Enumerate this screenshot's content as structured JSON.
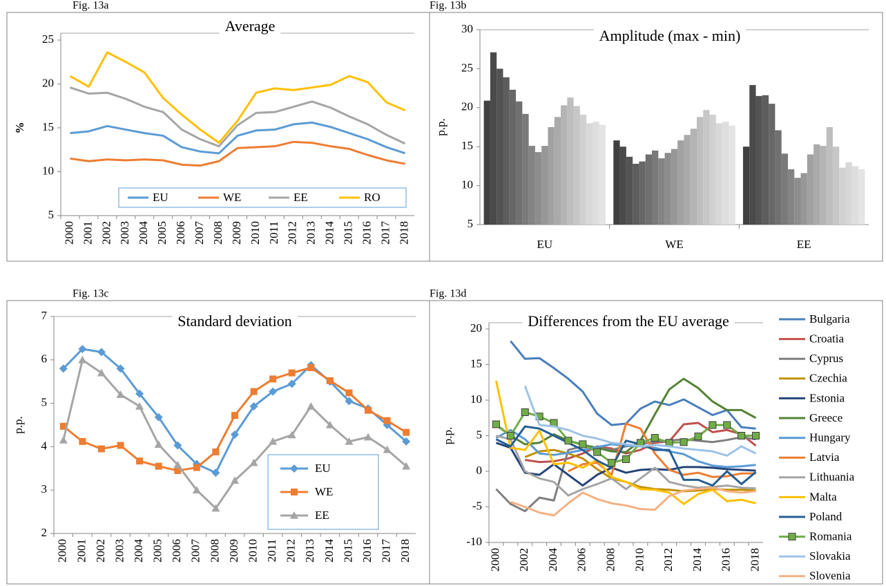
{
  "chart_data": [
    {
      "type": "line",
      "figure_label": "Fig. 13a",
      "title": "Average",
      "ylabel": "%",
      "categories": [
        "2000",
        "2001",
        "2002",
        "2003",
        "2004",
        "2005",
        "2006",
        "2007",
        "2008",
        "2009",
        "2010",
        "2011",
        "2012",
        "2013",
        "2014",
        "2015",
        "2016",
        "2017",
        "2018"
      ],
      "ylim": [
        5,
        25
      ],
      "yticks": [
        5,
        10,
        15,
        20,
        25
      ],
      "legend": "bottom",
      "series": [
        {
          "name": "EU",
          "color": "#5b9bd5",
          "values": [
            14.4,
            14.6,
            15.2,
            14.8,
            14.4,
            14.1,
            12.8,
            12.3,
            12.1,
            14.1,
            14.7,
            14.8,
            15.4,
            15.6,
            15.1,
            14.4,
            13.7,
            12.8,
            12.1
          ]
        },
        {
          "name": "WE",
          "color": "#ed7d31",
          "values": [
            11.5,
            11.2,
            11.4,
            11.3,
            11.4,
            11.3,
            10.8,
            10.7,
            11.2,
            12.7,
            12.8,
            12.9,
            13.4,
            13.3,
            12.9,
            12.6,
            11.9,
            11.3,
            10.9
          ]
        },
        {
          "name": "EE",
          "color": "#a5a5a5",
          "values": [
            19.6,
            18.9,
            19.0,
            18.3,
            17.4,
            16.8,
            14.8,
            13.7,
            12.9,
            15.3,
            16.7,
            16.8,
            17.4,
            18.0,
            17.3,
            16.3,
            15.4,
            14.2,
            13.2
          ]
        },
        {
          "name": "RO",
          "color": "#ffc000",
          "values": [
            20.9,
            19.7,
            23.6,
            22.5,
            21.3,
            18.4,
            16.5,
            14.8,
            13.3,
            15.8,
            19.0,
            19.5,
            19.3,
            19.6,
            19.9,
            20.9,
            20.2,
            17.9,
            17.0
          ]
        }
      ]
    },
    {
      "type": "bar",
      "figure_label": "Fig. 13b",
      "title": "Amplitude (max - min)",
      "ylabel": "p.p.",
      "categories": [
        "EU",
        "WE",
        "EE"
      ],
      "ylim": [
        5,
        30
      ],
      "yticks": [
        5,
        10,
        15,
        20,
        25,
        30
      ],
      "series": [
        {
          "color": "#404040",
          "values": [
            20.9,
            15.8,
            15.0
          ]
        },
        {
          "color": "#4a4a4a",
          "values": [
            27.1,
            15.0,
            22.9
          ]
        },
        {
          "color": "#535353",
          "values": [
            25.0,
            13.7,
            21.5
          ]
        },
        {
          "color": "#5d5d5d",
          "values": [
            23.9,
            12.8,
            21.6
          ]
        },
        {
          "color": "#676767",
          "values": [
            22.3,
            13.1,
            20.5
          ]
        },
        {
          "color": "#707070",
          "values": [
            20.8,
            14.0,
            17.1
          ]
        },
        {
          "color": "#7a7a7a",
          "values": [
            19.2,
            14.5,
            14.1
          ]
        },
        {
          "color": "#848484",
          "values": [
            15.1,
            13.5,
            12.1
          ]
        },
        {
          "color": "#8d8d8d",
          "values": [
            14.3,
            14.2,
            11.0
          ]
        },
        {
          "color": "#979797",
          "values": [
            15.1,
            14.7,
            11.6
          ]
        },
        {
          "color": "#a1a1a1",
          "values": [
            17.5,
            15.8,
            14.0
          ]
        },
        {
          "color": "#aaaaaa",
          "values": [
            18.8,
            16.5,
            15.3
          ]
        },
        {
          "color": "#b4b4b4",
          "values": [
            20.3,
            17.3,
            15.1
          ]
        },
        {
          "color": "#bebebe",
          "values": [
            21.3,
            18.8,
            17.5
          ]
        },
        {
          "color": "#c7c7c7",
          "values": [
            20.2,
            19.7,
            15.0
          ]
        },
        {
          "color": "#d1d1d1",
          "values": [
            19.1,
            19.1,
            12.3
          ]
        },
        {
          "color": "#d8d8d8",
          "values": [
            18.0,
            18.0,
            13.0
          ]
        },
        {
          "color": "#dedede",
          "values": [
            18.2,
            18.2,
            12.5
          ]
        },
        {
          "color": "#e4e4e4",
          "values": [
            17.8,
            17.7,
            12.1
          ]
        }
      ]
    },
    {
      "type": "line",
      "figure_label": "Fig. 13c",
      "title": "Standard deviation",
      "ylabel": "p.p.",
      "categories": [
        "2000",
        "2001",
        "2002",
        "2003",
        "2004",
        "2005",
        "2006",
        "2007",
        "2008",
        "2009",
        "2010",
        "2011",
        "2012",
        "2013",
        "2014",
        "2015",
        "2016",
        "2017",
        "2018"
      ],
      "ylim": [
        2,
        7
      ],
      "yticks": [
        2,
        3,
        4,
        5,
        6,
        7
      ],
      "legend": "right",
      "series": [
        {
          "name": "EU",
          "color": "#5b9bd5",
          "marker": "diamond",
          "values": [
            5.8,
            6.25,
            6.18,
            5.8,
            5.22,
            4.68,
            4.03,
            3.6,
            3.4,
            4.28,
            4.93,
            5.27,
            5.45,
            5.88,
            5.5,
            5.05,
            4.88,
            4.5,
            4.12
          ]
        },
        {
          "name": "WE",
          "color": "#ed7d31",
          "marker": "square",
          "values": [
            4.47,
            4.12,
            3.95,
            4.03,
            3.67,
            3.55,
            3.45,
            3.52,
            3.88,
            4.72,
            5.27,
            5.56,
            5.7,
            5.82,
            5.52,
            5.24,
            4.84,
            4.6,
            4.33
          ]
        },
        {
          "name": "EE",
          "color": "#a5a5a5",
          "marker": "triangle",
          "values": [
            4.15,
            6.0,
            5.7,
            5.2,
            4.93,
            4.05,
            3.58,
            3.0,
            2.58,
            3.22,
            3.63,
            4.12,
            4.27,
            4.93,
            4.5,
            4.12,
            4.22,
            3.93,
            3.55
          ]
        }
      ]
    },
    {
      "type": "line",
      "figure_label": "Fig. 13d",
      "title": "Differences from the EU average",
      "ylabel": "p.p.",
      "categories": [
        "2000",
        null,
        "2002",
        null,
        "2004",
        null,
        "2006",
        null,
        "2008",
        null,
        "2010",
        null,
        "2012",
        null,
        "2014",
        null,
        "2016",
        null,
        "2018"
      ],
      "ylim": [
        -10,
        20
      ],
      "yticks": [
        -10,
        -5,
        0,
        5,
        10,
        15,
        20
      ],
      "legend": "outside right",
      "series": [
        {
          "name": "Bulgaria",
          "color": "#4a7ebb",
          "values": [
            null,
            18.3,
            15.8,
            15.9,
            14.5,
            13.0,
            11.2,
            8.1,
            6.5,
            6.7,
            8.8,
            9.8,
            9.3,
            10.1,
            9.0,
            7.9,
            8.6,
            6.2,
            6.0
          ]
        },
        {
          "name": "Croatia",
          "color": "#c0504d",
          "values": [
            null,
            null,
            1.6,
            1.3,
            1.4,
            1.8,
            2.5,
            3.5,
            3.2,
            2.5,
            3.0,
            4.0,
            4.2,
            6.6,
            6.8,
            5.5,
            5.8,
            5.2,
            3.6
          ]
        },
        {
          "name": "Cyprus",
          "color": "#7f7f7f",
          "values": [
            -2.5,
            -4.6,
            -5.6,
            -3.7,
            -4.1,
            3.0,
            3.5,
            3.3,
            3.0,
            3.5,
            3.8,
            4.2,
            4.3,
            4.5,
            4.3,
            4.1,
            4.4,
            4.8,
            4.5
          ]
        },
        {
          "name": "Czechia",
          "color": "#bf9000",
          "values": [
            null,
            null,
            2.0,
            2.8,
            3.0,
            2.5,
            1.8,
            0.3,
            -1.0,
            -1.5,
            -2.2,
            -2.5,
            -2.6,
            -2.8,
            -2.7,
            -2.5,
            -2.6,
            -2.6,
            -2.7
          ]
        },
        {
          "name": "Estonia",
          "color": "#264478",
          "values": [
            4.0,
            3.3,
            -0.2,
            -0.5,
            1.0,
            -0.5,
            -2.0,
            -0.5,
            0.5,
            -0.2,
            0.2,
            0.3,
            0.2,
            0.6,
            0.6,
            0.5,
            0.3,
            0.2,
            0.1
          ]
        },
        {
          "name": "Greece",
          "color": "#548235",
          "values": [
            6.5,
            5.0,
            3.8,
            4.0,
            5.2,
            4.3,
            3.7,
            3.3,
            2.8,
            2.7,
            4.3,
            8.0,
            11.5,
            13.0,
            11.7,
            9.8,
            8.6,
            8.6,
            7.5
          ]
        },
        {
          "name": "Hungary",
          "color": "#5b9bd5",
          "values": [
            4.7,
            5.8,
            4.5,
            2.5,
            2.3,
            2.6,
            3.0,
            3.4,
            3.8,
            3.6,
            3.5,
            3.3,
            2.8,
            2.4,
            1.4,
            0.8,
            0.6,
            0.7,
            0.9
          ]
        },
        {
          "name": "Latvia",
          "color": "#ed7d31",
          "values": [
            null,
            null,
            null,
            null,
            null,
            0.0,
            1.0,
            1.2,
            -0.5,
            6.7,
            6.0,
            2.5,
            0.2,
            -0.5,
            -0.2,
            -0.8,
            -0.7,
            -0.3,
            -0.3
          ]
        },
        {
          "name": "Lithuania",
          "color": "#a5a5a5",
          "values": [
            5.0,
            4.5,
            0.0,
            -1.0,
            -1.5,
            -3.4,
            -2.5,
            -1.8,
            -1.0,
            -2.5,
            -1.0,
            0.5,
            -1.5,
            -2.0,
            -2.3,
            -2.2,
            -2.0,
            -2.3,
            -2.4
          ]
        },
        {
          "name": "Malta",
          "color": "#ffc000",
          "values": [
            12.7,
            3.3,
            3.0,
            5.7,
            1.0,
            1.2,
            0.5,
            1.6,
            -0.8,
            -1.5,
            -2.5,
            -2.6,
            -3.0,
            -4.6,
            -3.2,
            -2.6,
            -4.2,
            -4.0,
            -4.5
          ]
        },
        {
          "name": "Poland",
          "color": "#255e91",
          "values": [
            4.5,
            3.5,
            6.3,
            6.0,
            5.0,
            4.0,
            3.0,
            1.5,
            0.5,
            4.3,
            3.8,
            3.0,
            3.0,
            -1.2,
            -1.2,
            -2.0,
            0.0,
            -1.8,
            -0.1
          ]
        },
        {
          "name": "Romania",
          "color": "#70ad47",
          "marker": "square",
          "values": [
            6.6,
            5.0,
            8.3,
            7.7,
            6.8,
            4.3,
            3.8,
            2.7,
            1.2,
            1.7,
            4.0,
            4.7,
            4.0,
            4.1,
            4.9,
            6.5,
            6.5,
            5.0,
            5.0
          ]
        },
        {
          "name": "Slovakia",
          "color": "#9dc3e6",
          "values": [
            null,
            null,
            12.0,
            6.5,
            6.3,
            5.8,
            5.0,
            4.6,
            4.0,
            3.8,
            3.5,
            3.7,
            3.5,
            3.2,
            3.0,
            2.8,
            2.2,
            3.5,
            2.5
          ]
        },
        {
          "name": "Slovenia",
          "color": "#f4b183",
          "values": [
            null,
            -4.3,
            -5.0,
            -5.8,
            -6.2,
            -4.5,
            -3.0,
            -3.9,
            -4.5,
            -4.8,
            -5.3,
            -5.4,
            -3.5,
            -2.7,
            -2.5,
            -2.3,
            -2.8,
            -3.0,
            -2.8
          ]
        }
      ]
    }
  ]
}
